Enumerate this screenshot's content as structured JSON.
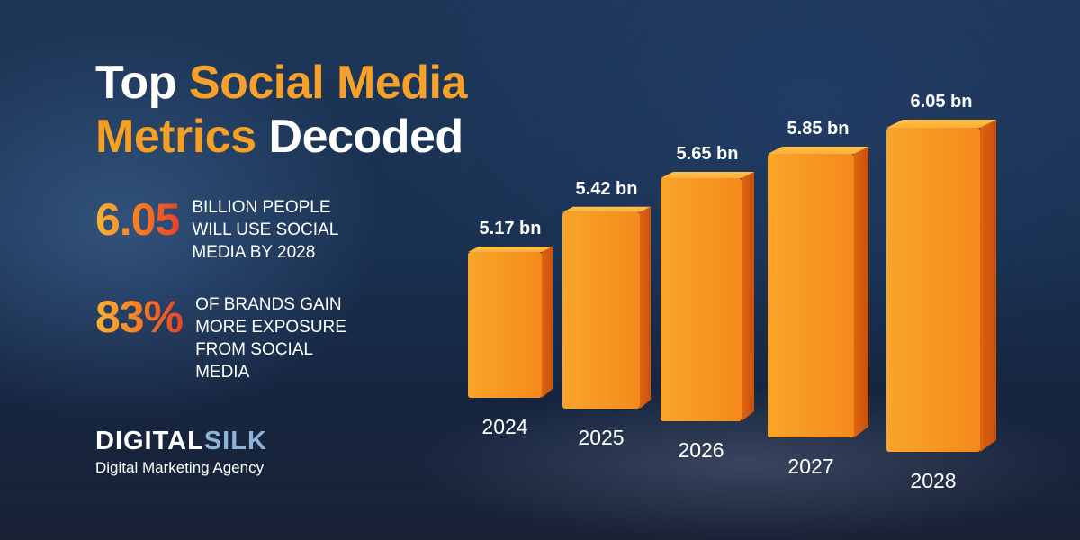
{
  "header": {
    "title_part1": "Top",
    "title_part2": "Social Media",
    "title_part3": "Metrics",
    "title_part4": "Decoded"
  },
  "stats": [
    {
      "value": "6.05",
      "text_lines": [
        "BILLION PEOPLE",
        "WILL USE SOCIAL",
        "MEDIA BY 2028"
      ]
    },
    {
      "value": "83%",
      "text_lines": [
        "OF BRANDS GAIN",
        "MORE EXPOSURE",
        "FROM SOCIAL",
        "MEDIA"
      ]
    }
  ],
  "logo": {
    "word_part1": "DIGITAL",
    "word_part2": "SILK",
    "tagline": "Digital Marketing Agency"
  },
  "colors": {
    "accent_orange": "#f7a12a",
    "accent_red": "#e8412b",
    "bar_front": "#f7931e",
    "background": "#1b3050"
  },
  "chart_data": {
    "type": "bar",
    "categories": [
      "2024",
      "2025",
      "2026",
      "2027",
      "2028"
    ],
    "values": [
      5.17,
      5.42,
      5.65,
      5.85,
      6.05
    ],
    "data_labels": [
      "5.17 bn",
      "5.42 bn",
      "5.65 bn",
      "5.85 bn",
      "6.05 bn"
    ],
    "title": "",
    "xlabel": "",
    "ylabel": "",
    "grid": false,
    "legend": "none"
  }
}
